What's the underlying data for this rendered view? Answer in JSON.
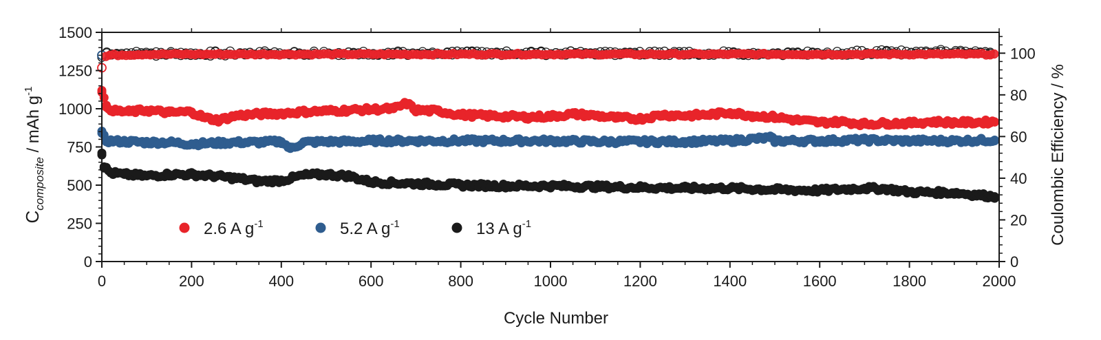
{
  "chart_data": {
    "type": "scatter",
    "xlabel": "Cycle Number",
    "ylabel": {
      "main": "C",
      "subscript": "composite",
      "unit": " / mAh g",
      "unit_sup": "-1"
    },
    "y2label": "Coulombic Efficiency / %",
    "xlim": [
      0,
      2000
    ],
    "ylim": [
      0,
      1500
    ],
    "y2lim": [
      0,
      110
    ],
    "xticks": [
      "0",
      "200",
      "400",
      "600",
      "800",
      "1000",
      "1200",
      "1400",
      "1600",
      "1800",
      "2000"
    ],
    "yticks": [
      "0",
      "250",
      "500",
      "750",
      "1000",
      "1250",
      "1500"
    ],
    "y2ticks": [
      "0",
      "20",
      "40",
      "60",
      "80",
      "100"
    ],
    "legend_position": "lower-left",
    "series": [
      {
        "name": "2.6 A g",
        "name_sup": "-1",
        "color": "#e8242a",
        "capacity": [
          [
            0,
            1120
          ],
          [
            10,
            1010
          ],
          [
            30,
            985
          ],
          [
            60,
            980
          ],
          [
            100,
            990
          ],
          [
            150,
            975
          ],
          [
            200,
            980
          ],
          [
            230,
            940
          ],
          [
            260,
            925
          ],
          [
            300,
            955
          ],
          [
            350,
            965
          ],
          [
            400,
            970
          ],
          [
            450,
            980
          ],
          [
            500,
            985
          ],
          [
            550,
            990
          ],
          [
            600,
            995
          ],
          [
            650,
            1000
          ],
          [
            680,
            1035
          ],
          [
            700,
            990
          ],
          [
            750,
            985
          ],
          [
            800,
            960
          ],
          [
            850,
            955
          ],
          [
            900,
            950
          ],
          [
            950,
            945
          ],
          [
            1000,
            950
          ],
          [
            1050,
            965
          ],
          [
            1100,
            955
          ],
          [
            1150,
            940
          ],
          [
            1200,
            935
          ],
          [
            1250,
            960
          ],
          [
            1300,
            955
          ],
          [
            1350,
            960
          ],
          [
            1400,
            975
          ],
          [
            1450,
            955
          ],
          [
            1500,
            945
          ],
          [
            1550,
            925
          ],
          [
            1600,
            910
          ],
          [
            1650,
            915
          ],
          [
            1700,
            900
          ],
          [
            1750,
            905
          ],
          [
            1800,
            905
          ],
          [
            1850,
            915
          ],
          [
            1900,
            910
          ],
          [
            1950,
            910
          ],
          [
            1990,
            915
          ]
        ],
        "efficiency": [
          [
            0,
            93
          ],
          [
            10,
            99
          ],
          [
            100,
            99.5
          ],
          [
            500,
            99.5
          ],
          [
            1000,
            99.5
          ],
          [
            1500,
            99.5
          ],
          [
            1990,
            99.5
          ]
        ]
      },
      {
        "name": "5.2 A g",
        "name_sup": "-1",
        "color": "#2f5d8f",
        "capacity": [
          [
            0,
            840
          ],
          [
            10,
            790
          ],
          [
            50,
            785
          ],
          [
            100,
            780
          ],
          [
            150,
            780
          ],
          [
            200,
            770
          ],
          [
            250,
            775
          ],
          [
            300,
            780
          ],
          [
            350,
            780
          ],
          [
            400,
            785
          ],
          [
            420,
            740
          ],
          [
            450,
            780
          ],
          [
            500,
            785
          ],
          [
            550,
            785
          ],
          [
            600,
            790
          ],
          [
            700,
            790
          ],
          [
            800,
            790
          ],
          [
            900,
            790
          ],
          [
            1000,
            790
          ],
          [
            1100,
            785
          ],
          [
            1200,
            785
          ],
          [
            1300,
            785
          ],
          [
            1400,
            790
          ],
          [
            1490,
            810
          ],
          [
            1500,
            790
          ],
          [
            1600,
            790
          ],
          [
            1700,
            795
          ],
          [
            1800,
            790
          ],
          [
            1900,
            790
          ],
          [
            1990,
            795
          ]
        ],
        "efficiency": [
          [
            0,
            99
          ],
          [
            10,
            99.5
          ],
          [
            500,
            100
          ],
          [
            1000,
            100
          ],
          [
            1500,
            100
          ],
          [
            1990,
            101
          ]
        ]
      },
      {
        "name": "13 A g",
        "name_sup": "-1",
        "color": "#1a1a1a",
        "capacity": [
          [
            0,
            710
          ],
          [
            5,
            620
          ],
          [
            20,
            580
          ],
          [
            50,
            570
          ],
          [
            100,
            560
          ],
          [
            150,
            570
          ],
          [
            200,
            570
          ],
          [
            250,
            560
          ],
          [
            300,
            545
          ],
          [
            350,
            525
          ],
          [
            400,
            530
          ],
          [
            450,
            565
          ],
          [
            500,
            570
          ],
          [
            550,
            560
          ],
          [
            600,
            520
          ],
          [
            650,
            515
          ],
          [
            700,
            510
          ],
          [
            750,
            505
          ],
          [
            800,
            500
          ],
          [
            900,
            495
          ],
          [
            1000,
            495
          ],
          [
            1100,
            490
          ],
          [
            1200,
            485
          ],
          [
            1300,
            480
          ],
          [
            1400,
            480
          ],
          [
            1500,
            470
          ],
          [
            1600,
            465
          ],
          [
            1700,
            480
          ],
          [
            1750,
            475
          ],
          [
            1800,
            455
          ],
          [
            1900,
            450
          ],
          [
            1990,
            425
          ]
        ],
        "efficiency": [
          [
            0,
            99
          ],
          [
            10,
            100
          ],
          [
            500,
            100
          ],
          [
            1000,
            100
          ],
          [
            1500,
            100
          ],
          [
            1990,
            100
          ]
        ]
      }
    ]
  }
}
